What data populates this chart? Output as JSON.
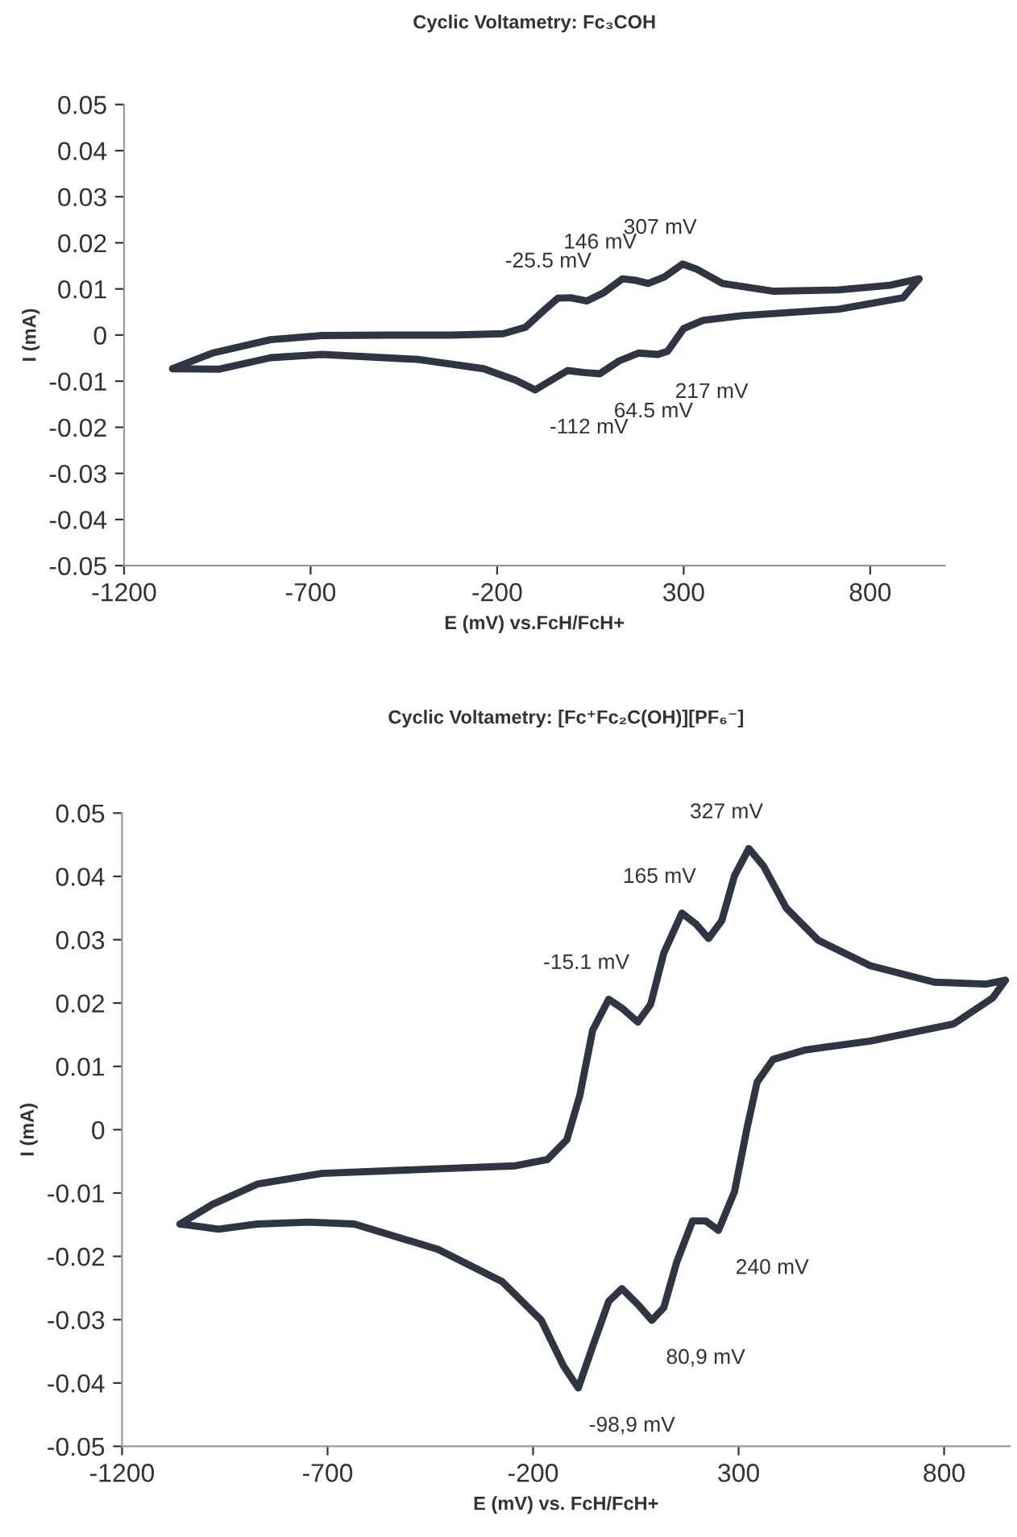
{
  "chart_data": [
    {
      "type": "line",
      "title": "Cyclic Voltametry: Fc₃COH",
      "xlabel": "E (mV) vs.FcH/FcH+",
      "ylabel": "I (mA)",
      "xlim": [
        -1200,
        1000
      ],
      "xticks": [
        -1200,
        -700,
        -200,
        300,
        800
      ],
      "ylim": [
        -0.05,
        0.05
      ],
      "yticks": [
        -0.05,
        -0.04,
        -0.03,
        -0.02,
        -0.01,
        0,
        0.01,
        0.02,
        0.03,
        0.04,
        0.05
      ],
      "grid": false,
      "legend": false,
      "marker": "none",
      "line_style": "solid",
      "series": [
        {
          "color": "#2f3542",
          "x": [
            -1070,
            -963,
            -807,
            -669,
            -496,
            -323,
            -184,
            -124,
            -81,
            -37,
            -3,
            41,
            84,
            136,
            170,
            205,
            248,
            297,
            335,
            404,
            542,
            715,
            853,
            931
          ],
          "values": [
            -0.0073,
            -0.0039,
            -0.001,
            -0.0001,
            0,
            0,
            0.0003,
            0.0017,
            0.0049,
            0.008,
            0.0081,
            0.0074,
            0.0091,
            0.0122,
            0.0119,
            0.0112,
            0.0126,
            0.0154,
            0.0143,
            0.0112,
            0.0095,
            0.0098,
            0.0108,
            0.0122
          ]
        },
        {
          "color": "#2f3542",
          "x": [
            931,
            888,
            715,
            456,
            352,
            300,
            257,
            231,
            179,
            127,
            75,
            32,
            -11,
            -55,
            -98,
            -150,
            -236,
            -409,
            -669,
            -807,
            -946,
            -1070
          ],
          "values": [
            0.0122,
            0.0081,
            0.0056,
            0.0042,
            0.0032,
            0.0014,
            -0.0035,
            -0.0042,
            -0.0039,
            -0.0056,
            -0.0084,
            -0.0081,
            -0.0077,
            -0.0098,
            -0.0119,
            -0.0098,
            -0.0073,
            -0.0053,
            -0.0042,
            -0.0049,
            -0.0074,
            -0.0073
          ]
        }
      ],
      "annotations": [
        {
          "text": "-25.5 mV",
          "x": -3,
          "y": 0.0081
        },
        {
          "text": "146 mV",
          "x": 136,
          "y": 0.0122
        },
        {
          "text": "307 mV",
          "x": 297,
          "y": 0.0154
        },
        {
          "text": "217 mV",
          "x": 231,
          "y": -0.0042
        },
        {
          "text": "64.5 mV",
          "x": 75,
          "y": -0.0084
        },
        {
          "text": "-112 mV",
          "x": -98,
          "y": -0.0119
        }
      ]
    },
    {
      "type": "line",
      "title": "Cyclic Voltametry: [Fc⁺Fc₂C(OH)][PF₆⁻]",
      "xlabel": "E (mV) vs. FcH/FcH+",
      "ylabel": "I (mA)",
      "xlim": [
        -1200,
        960
      ],
      "xticks": [
        -1200,
        -700,
        -200,
        300,
        800
      ],
      "ylim": [
        -0.05,
        0.05
      ],
      "yticks": [
        -0.05,
        -0.04,
        -0.03,
        -0.02,
        -0.01,
        0,
        0.01,
        0.02,
        0.03,
        0.04,
        0.05
      ],
      "grid": false,
      "legend": false,
      "marker": "none",
      "line_style": "solid",
      "series": [
        {
          "color": "#2f3542",
          "x": [
            -1059,
            -980,
            -871,
            -714,
            -478,
            -243,
            -165,
            -118,
            -86,
            -55,
            -16,
            16,
            55,
            86,
            118,
            162,
            196,
            227,
            259,
            290,
            325,
            361,
            416,
            494,
            620,
            776,
            902,
            949
          ],
          "values": [
            -0.0149,
            -0.0118,
            -0.0086,
            -0.0069,
            -0.0063,
            -0.0057,
            -0.0047,
            -0.0016,
            0.0055,
            0.0157,
            0.0206,
            0.0192,
            0.017,
            0.0198,
            0.0279,
            0.0342,
            0.0325,
            0.0302,
            0.033,
            0.0401,
            0.0444,
            0.0416,
            0.035,
            0.0299,
            0.0259,
            0.0233,
            0.023,
            0.0236
          ]
        },
        {
          "color": "#2f3542",
          "x": [
            949,
            918,
            823,
            620,
            463,
            384,
            345,
            321,
            290,
            251,
            220,
            188,
            149,
            118,
            89,
            55,
            16,
            -16,
            -55,
            -90,
            -126,
            -180,
            -275,
            -431,
            -635,
            -745,
            -871,
            -965,
            -1059
          ],
          "values": [
            0.0236,
            0.0208,
            0.0167,
            0.014,
            0.0126,
            0.0111,
            0.0075,
            0.0004,
            -0.0098,
            -0.0159,
            -0.0144,
            -0.0144,
            -0.021,
            -0.0281,
            -0.0301,
            -0.0276,
            -0.0251,
            -0.0271,
            -0.0342,
            -0.0408,
            -0.0373,
            -0.0301,
            -0.024,
            -0.0189,
            -0.0149,
            -0.0146,
            -0.0149,
            -0.0157,
            -0.0149
          ]
        }
      ],
      "annotations": [
        {
          "text": "327 mV",
          "x": 325,
          "y": 0.0444
        },
        {
          "text": "165 mV",
          "x": 162,
          "y": 0.0342
        },
        {
          "text": "-15.1 mV",
          "x": -16,
          "y": 0.0206
        },
        {
          "text": "240 mV",
          "x": 251,
          "y": -0.0159
        },
        {
          "text": "80,9 mV",
          "x": 89,
          "y": -0.0301
        },
        {
          "text": "-98,9 mV",
          "x": -90,
          "y": -0.0408
        }
      ]
    }
  ]
}
